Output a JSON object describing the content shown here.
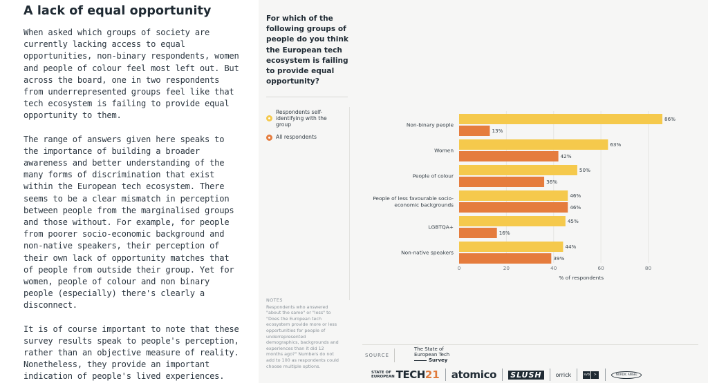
{
  "article": {
    "title": "A lack of equal opportunity",
    "paragraphs": [
      "When asked which groups of society are currently lacking access to equal opportunities, non-binary respondents, women and people of colour feel most left out. But across the board, one in two respondents from underrepresented groups feel like that tech ecosystem is failing to provide equal opportunity to them.",
      "The range of answers given here speaks to the importance of building a broader awareness and better understanding of the many forms of discrimination that exist within the European tech ecosystem. There seems to be a clear mismatch in perception between people from the marginalised groups and those without. For example, for people from poorer socio-economic background and non-native speakers, their perception of their own lack of opportunity matches that of people from outside their group. Yet for women, people of colour and non binary people (especially) there's clearly a disconnect.",
      "It is of course important to note that these survey results speak to people's perception, rather than an objective measure of reality. Nonetheless, they provide an important indication of people's lived experiences."
    ]
  },
  "panel": {
    "question": "For which of the following groups of people do you think the European tech ecosystem is failing to provide equal opportunity?",
    "notes_title": "NOTES",
    "notes_text": "Respondents who answered \"about the same\" or \"less\" to \"Does the European tech ecosystem provide more or less opportunities for people of underrepresented demographics, backgrounds and experiences than it did 12 months ago?\" Numbers do not add to 100 as respondents could choose multiple options.",
    "source_label": "SOURCE",
    "survey_logo": [
      "The State of",
      "European Tech",
      "Survey"
    ],
    "logos": {
      "sotet_small": [
        "STATE OF",
        "EUROPEAN"
      ],
      "sotet_big": "TECH",
      "sotet_num": "21",
      "atomico": "atomico",
      "slush": "SLUSH",
      "orrick": "orrick",
      "svb": [
        "svb",
        ">"
      ],
      "oval": "NORDIC ANGEL"
    }
  },
  "colors": {
    "self_identifying": "#f5c94c",
    "all_respondents": "#e57c3d",
    "axis_text": "#6d757b",
    "grid": "#e6e6e3"
  },
  "chart_data": {
    "type": "bar",
    "orientation": "horizontal",
    "categories": [
      [
        "Non-binary people"
      ],
      [
        "Women"
      ],
      [
        "People of colour"
      ],
      [
        "People of less favourable socio-",
        "economic backgrounds"
      ],
      [
        "LGBTQA+"
      ],
      [
        "Non-native speakers"
      ]
    ],
    "series": [
      {
        "name": "Respondents self-identifying with the group",
        "values": [
          86,
          63,
          50,
          46,
          45,
          44
        ]
      },
      {
        "name": "All respondents",
        "values": [
          13,
          42,
          36,
          46,
          16,
          39
        ]
      }
    ],
    "value_suffix": "%",
    "xlabel": "% of respondents",
    "xlim": [
      0,
      86
    ],
    "xticks": [
      0,
      20,
      40,
      60,
      80
    ],
    "legend_position": "left",
    "grid": true
  }
}
